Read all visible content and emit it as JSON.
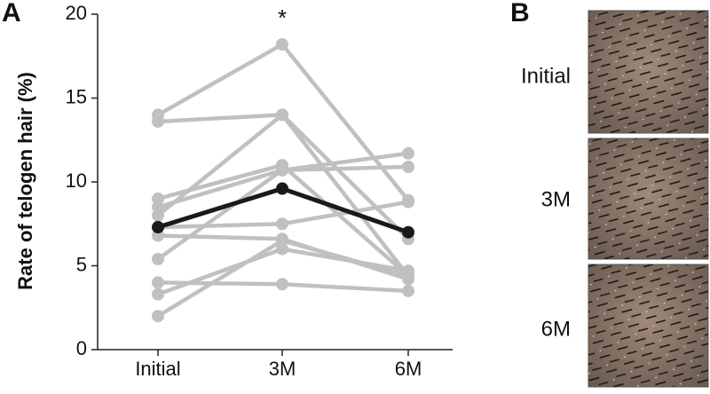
{
  "chart_data": {
    "type": "line",
    "panel": "A",
    "annotation": "*",
    "ylabel": "Rate of telogen hair (%)",
    "categories": [
      "Initial",
      "3M",
      "6M"
    ],
    "ylim": [
      0,
      20
    ],
    "yticks": [
      0,
      5,
      10,
      15,
      20
    ],
    "series": [
      {
        "color": "#c0c0c0",
        "values": [
          14.0,
          18.2,
          8.9
        ]
      },
      {
        "color": "#c0c0c0",
        "values": [
          13.6,
          14.0,
          6.6
        ]
      },
      {
        "color": "#c0c0c0",
        "values": [
          9.0,
          11.0,
          4.4
        ]
      },
      {
        "color": "#c0c0c0",
        "values": [
          8.5,
          10.7,
          11.7
        ]
      },
      {
        "color": "#c0c0c0",
        "values": [
          8.0,
          14.0,
          4.4
        ]
      },
      {
        "color": "#c0c0c0",
        "values": [
          7.3,
          7.5,
          8.8
        ]
      },
      {
        "color": "#c0c0c0",
        "values": [
          6.8,
          6.6,
          4.2
        ]
      },
      {
        "color": "#c0c0c0",
        "values": [
          5.4,
          10.7,
          10.9
        ]
      },
      {
        "color": "#c0c0c0",
        "values": [
          4.0,
          3.9,
          3.5
        ]
      },
      {
        "color": "#c0c0c0",
        "values": [
          3.3,
          6.0,
          4.7
        ]
      },
      {
        "color": "#c0c0c0",
        "values": [
          2.0,
          6.5,
          4.4
        ]
      },
      {
        "color": "#1a1a1a",
        "values": [
          7.3,
          9.6,
          7.0
        ]
      }
    ]
  },
  "panel_b": {
    "label": "B",
    "rows": [
      "Initial",
      "3M",
      "6M"
    ]
  }
}
